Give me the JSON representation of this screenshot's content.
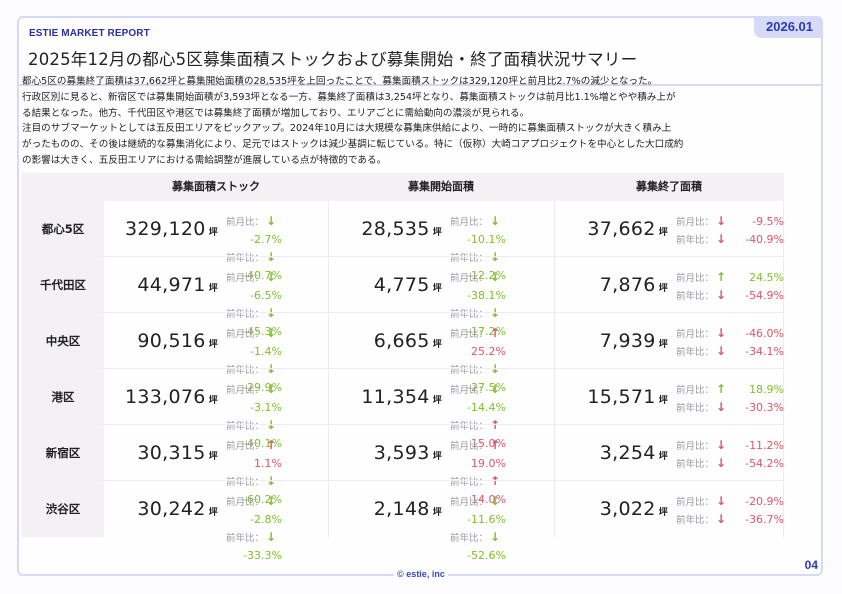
{
  "header": {
    "brand": "ESTIE MARKET REPORT",
    "date": "2026.01",
    "title": "2025年12月の都心5区募集面積ストックおよび募集開始・終了面積状況サマリー"
  },
  "summary": [
    "都心5区の募集終了面積は37,662坪と募集開始面積の28,535坪を上回ったことで、募集面積ストックは329,120坪と前月比2.7%の減少となった。",
    "行政区別に見ると、新宿区では募集開始面積が3,593坪となる一方、募集終了面積は3,254坪となり、募集面積ストックは前月比1.1%増とやや積み上が",
    "る結果となった。他方、千代田区や港区では募集終了面積が増加しており、エリアごとに需給動向の濃淡が見られる。",
    "注目のサブマーケットとしては五反田エリアをピックアップ。2024年10月には大規模な募集床供給により、一時的に募集面積ストックが大きく積み上",
    "がったものの、その後は継続的な募集消化により、足元ではストックは減少基調に転じている。特に（仮称）大崎コアプロジェクトを中心とした大口成約",
    "の影響は大きく、五反田エリアにおける需給調整が進展している点が特徴的である。"
  ],
  "table": {
    "columns": [
      "募集面積ストック",
      "募集開始面積",
      "募集終了面積"
    ],
    "unit": "坪",
    "mom_label": "前月比：",
    "yoy_label": "前年比：",
    "colors": {
      "good": "#7ec02a",
      "bad": "#e05565"
    },
    "rows": [
      {
        "area": "都心5区",
        "cells": [
          {
            "value": "329,120",
            "mom": "-2.7%",
            "mom_dir": "down",
            "mom_tone": "g",
            "yoy": "-40.7%",
            "yoy_dir": "down",
            "yoy_tone": "g"
          },
          {
            "value": "28,535",
            "mom": "-10.1%",
            "mom_dir": "down",
            "mom_tone": "g",
            "yoy": "-12.2%",
            "yoy_dir": "down",
            "yoy_tone": "g"
          },
          {
            "value": "37,662",
            "mom": "-9.5%",
            "mom_dir": "down",
            "mom_tone": "r",
            "yoy": "-40.9%",
            "yoy_dir": "down",
            "yoy_tone": "r"
          }
        ]
      },
      {
        "area": "千代田区",
        "cells": [
          {
            "value": "44,971",
            "mom": "-6.5%",
            "mom_dir": "down",
            "mom_tone": "g",
            "yoy": "-45.3%",
            "yoy_dir": "down",
            "yoy_tone": "g"
          },
          {
            "value": "4,775",
            "mom": "-38.1%",
            "mom_dir": "down",
            "mom_tone": "g",
            "yoy": "-17.2%",
            "yoy_dir": "down",
            "yoy_tone": "g"
          },
          {
            "value": "7,876",
            "mom": "24.5%",
            "mom_dir": "up",
            "mom_tone": "g",
            "yoy": "-54.9%",
            "yoy_dir": "down",
            "yoy_tone": "r"
          }
        ]
      },
      {
        "area": "中央区",
        "cells": [
          {
            "value": "90,516",
            "mom": "-1.4%",
            "mom_dir": "down",
            "mom_tone": "g",
            "yoy": "-29.9%",
            "yoy_dir": "down",
            "yoy_tone": "g"
          },
          {
            "value": "6,665",
            "mom": "25.2%",
            "mom_dir": "up",
            "mom_tone": "r",
            "yoy": "-27.5%",
            "yoy_dir": "down",
            "yoy_tone": "g"
          },
          {
            "value": "7,939",
            "mom": "-46.0%",
            "mom_dir": "down",
            "mom_tone": "r",
            "yoy": "-34.1%",
            "yoy_dir": "down",
            "yoy_tone": "r"
          }
        ]
      },
      {
        "area": "港区",
        "cells": [
          {
            "value": "133,076",
            "mom": "-3.1%",
            "mom_dir": "down",
            "mom_tone": "g",
            "yoy": "-40.1%",
            "yoy_dir": "down",
            "yoy_tone": "g"
          },
          {
            "value": "11,354",
            "mom": "-14.4%",
            "mom_dir": "down",
            "mom_tone": "g",
            "yoy": "15.0%",
            "yoy_dir": "up",
            "yoy_tone": "r"
          },
          {
            "value": "15,571",
            "mom": "18.9%",
            "mom_dir": "up",
            "mom_tone": "g",
            "yoy": "-30.3%",
            "yoy_dir": "down",
            "yoy_tone": "r"
          }
        ]
      },
      {
        "area": "新宿区",
        "cells": [
          {
            "value": "30,315",
            "mom": "1.1%",
            "mom_dir": "up",
            "mom_tone": "r",
            "yoy": "-60.2%",
            "yoy_dir": "down",
            "yoy_tone": "g"
          },
          {
            "value": "3,593",
            "mom": "19.0%",
            "mom_dir": "up",
            "mom_tone": "r",
            "yoy": "14.0%",
            "yoy_dir": "up",
            "yoy_tone": "r"
          },
          {
            "value": "3,254",
            "mom": "-11.2%",
            "mom_dir": "down",
            "mom_tone": "r",
            "yoy": "-54.2%",
            "yoy_dir": "down",
            "yoy_tone": "r"
          }
        ]
      },
      {
        "area": "渋谷区",
        "cells": [
          {
            "value": "30,242",
            "mom": "-2.8%",
            "mom_dir": "down",
            "mom_tone": "g",
            "yoy": "-33.3%",
            "yoy_dir": "down",
            "yoy_tone": "g"
          },
          {
            "value": "2,148",
            "mom": "-11.6%",
            "mom_dir": "down",
            "mom_tone": "g",
            "yoy": "-52.6%",
            "yoy_dir": "down",
            "yoy_tone": "g"
          },
          {
            "value": "3,022",
            "mom": "-20.9%",
            "mom_dir": "down",
            "mom_tone": "r",
            "yoy": "-36.7%",
            "yoy_dir": "down",
            "yoy_tone": "r"
          }
        ]
      }
    ]
  },
  "footer": {
    "copyright": "© estie, inc",
    "page": "04"
  }
}
